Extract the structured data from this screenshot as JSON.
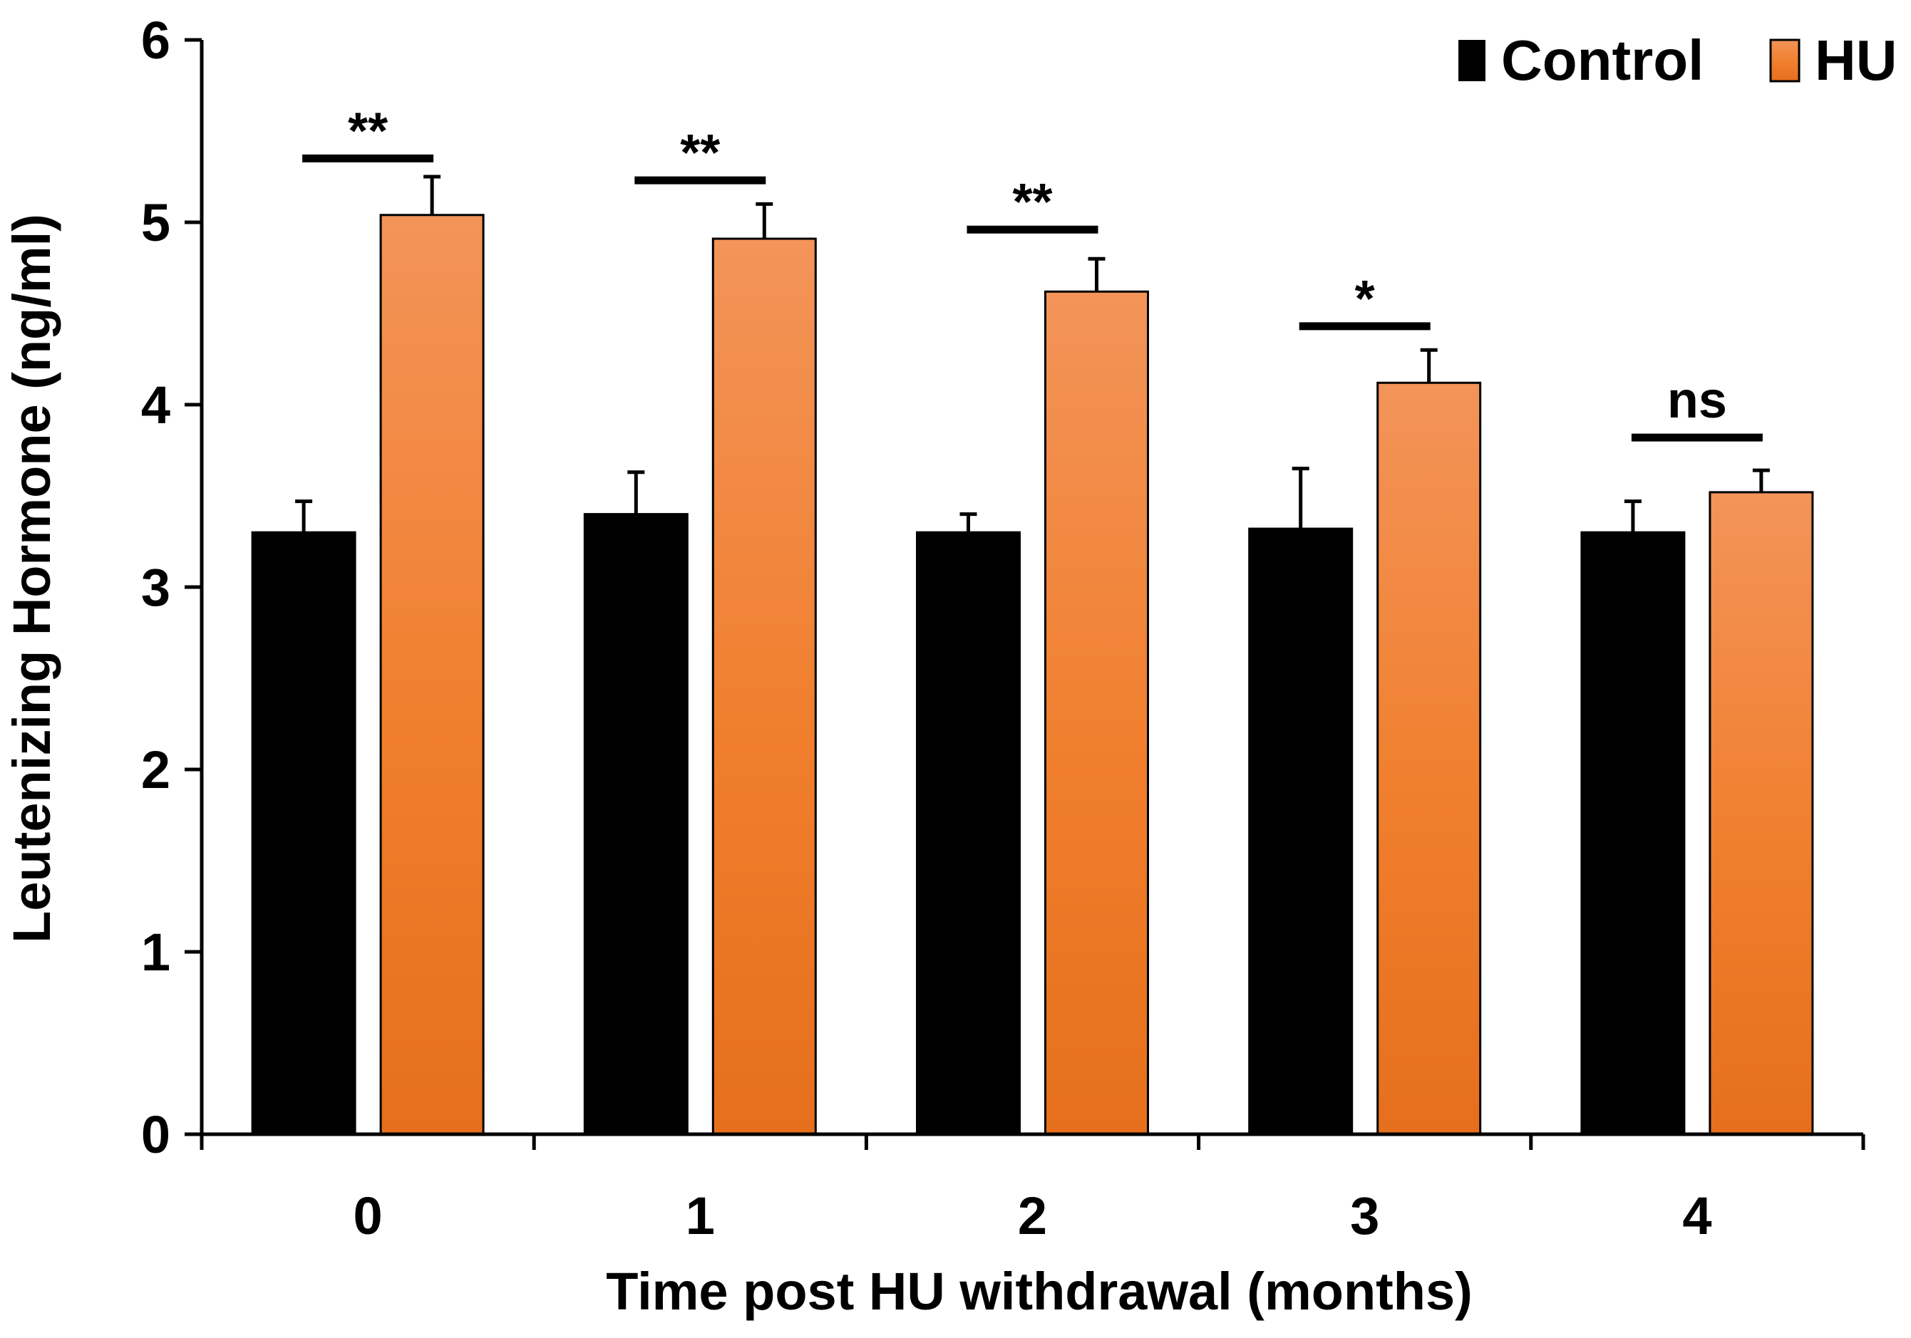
{
  "chart_data": {
    "type": "bar",
    "title": "",
    "xlabel": "Time post HU withdrawal (months)",
    "ylabel": "Leutenizing Hormone  (ng/ml)",
    "ylim": [
      0,
      6
    ],
    "yticks": [
      "0",
      "1",
      "2",
      "3",
      "4",
      "5",
      "6"
    ],
    "categories": [
      "0",
      "1",
      "2",
      "3",
      "4"
    ],
    "grid": false,
    "legend_position": "top-right",
    "series": [
      {
        "name": "Control",
        "color": "#000000",
        "values": [
          3.3,
          3.4,
          3.3,
          3.32,
          3.3
        ],
        "errors": [
          0.17,
          0.23,
          0.1,
          0.33,
          0.17
        ]
      },
      {
        "name": "HU",
        "color": "#f07f2d",
        "values": [
          5.04,
          4.91,
          4.62,
          4.12,
          3.52
        ],
        "errors": [
          0.21,
          0.19,
          0.18,
          0.18,
          0.12
        ]
      }
    ],
    "annotations": [
      {
        "category": "0",
        "label": "**",
        "bracket_y": 5.35
      },
      {
        "category": "1",
        "label": "**",
        "bracket_y": 5.23
      },
      {
        "category": "2",
        "label": "**",
        "bracket_y": 4.96
      },
      {
        "category": "3",
        "label": "*",
        "bracket_y": 4.43
      },
      {
        "category": "4",
        "label": "ns",
        "bracket_y": 3.82
      }
    ]
  }
}
